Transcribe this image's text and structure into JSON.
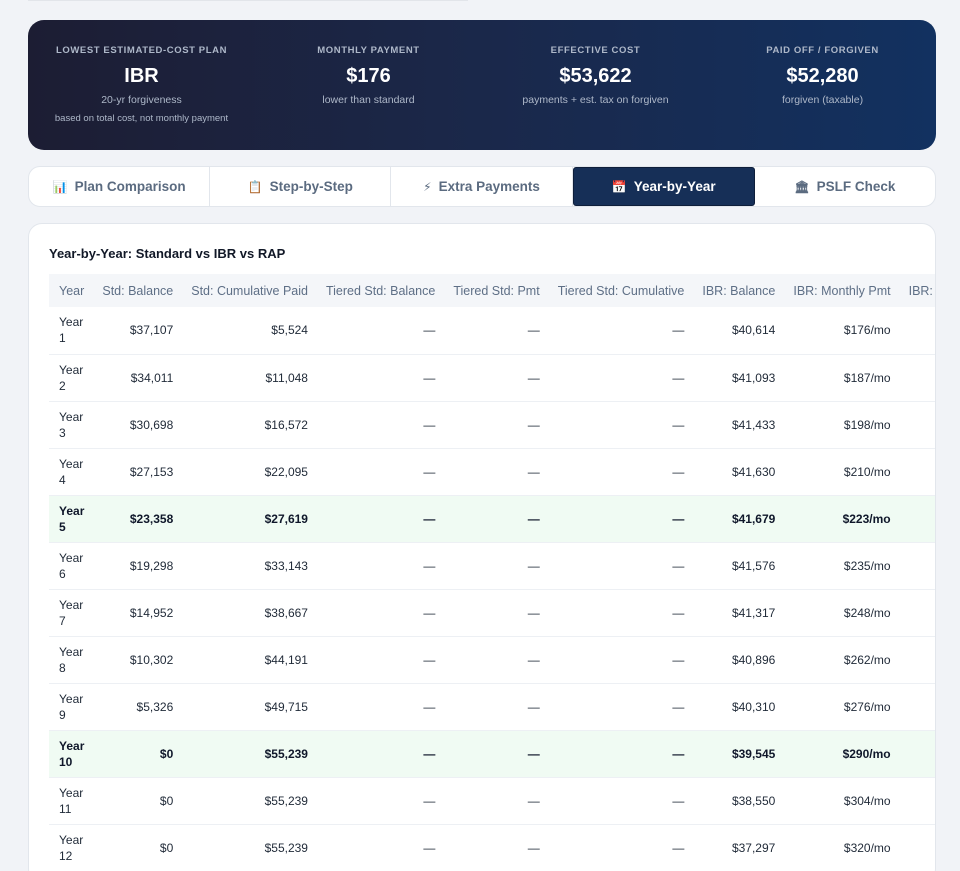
{
  "summary": {
    "stats": [
      {
        "label": "Lowest Estimated-Cost Plan",
        "value": "IBR",
        "sub": "20-yr forgiveness",
        "sub2": "based on total cost, not monthly payment"
      },
      {
        "label": "Monthly Payment",
        "value": "$176",
        "sub": "lower than standard"
      },
      {
        "label": "Effective Cost",
        "value": "$53,622",
        "sub": "payments + est. tax on forgiven"
      },
      {
        "label": "Paid Off / Forgiven",
        "value": "$52,280",
        "sub": "forgiven (taxable)"
      }
    ]
  },
  "tabs": [
    {
      "icon": "📊",
      "icon_name": "bar-chart-icon",
      "label": "Plan Comparison",
      "active": false
    },
    {
      "icon": "📋",
      "icon_name": "clipboard-icon",
      "label": "Step-by-Step",
      "active": false
    },
    {
      "icon": "⚡",
      "icon_name": "lightning-icon",
      "label": "Extra Payments",
      "active": false
    },
    {
      "icon": "📅",
      "icon_name": "calendar-icon",
      "label": "Year-by-Year",
      "active": true
    },
    {
      "icon": "🏛",
      "icon_name": "bank-icon",
      "label": "PSLF Check",
      "active": false
    }
  ],
  "panel": {
    "title": "Year-by-Year: Standard vs IBR vs RAP"
  },
  "table": {
    "columns": [
      "Year",
      "Std: Balance",
      "Std: Cumulative Paid",
      "Tiered Std: Balance",
      "Tiered Std: Pmt",
      "Tiered Std: Cumulative",
      "IBR: Balance",
      "IBR: Monthly Pmt",
      "IBR: Cumulative"
    ],
    "rows": [
      {
        "year": "Year 1",
        "cells": [
          "$37,107",
          "$5,524",
          "—",
          "—",
          "—",
          "$40,614",
          "$176/mo",
          ""
        ],
        "highlight": false
      },
      {
        "year": "Year 2",
        "cells": [
          "$34,011",
          "$11,048",
          "—",
          "—",
          "—",
          "$41,093",
          "$187/mo",
          ""
        ],
        "highlight": false
      },
      {
        "year": "Year 3",
        "cells": [
          "$30,698",
          "$16,572",
          "—",
          "—",
          "—",
          "$41,433",
          "$198/mo",
          ""
        ],
        "highlight": false
      },
      {
        "year": "Year 4",
        "cells": [
          "$27,153",
          "$22,095",
          "—",
          "—",
          "—",
          "$41,630",
          "$210/mo",
          ""
        ],
        "highlight": false
      },
      {
        "year": "Year 5",
        "cells": [
          "$23,358",
          "$27,619",
          "—",
          "—",
          "—",
          "$41,679",
          "$223/mo",
          ""
        ],
        "highlight": true
      },
      {
        "year": "Year 6",
        "cells": [
          "$19,298",
          "$33,143",
          "—",
          "—",
          "—",
          "$41,576",
          "$235/mo",
          ""
        ],
        "highlight": false
      },
      {
        "year": "Year 7",
        "cells": [
          "$14,952",
          "$38,667",
          "—",
          "—",
          "—",
          "$41,317",
          "$248/mo",
          ""
        ],
        "highlight": false
      },
      {
        "year": "Year 8",
        "cells": [
          "$10,302",
          "$44,191",
          "—",
          "—",
          "—",
          "$40,896",
          "$262/mo",
          ""
        ],
        "highlight": false
      },
      {
        "year": "Year 9",
        "cells": [
          "$5,326",
          "$49,715",
          "—",
          "—",
          "—",
          "$40,310",
          "$276/mo",
          ""
        ],
        "highlight": false
      },
      {
        "year": "Year 10",
        "cells": [
          "$0",
          "$55,239",
          "—",
          "—",
          "—",
          "$39,545",
          "$290/mo",
          ""
        ],
        "highlight": true
      },
      {
        "year": "Year 11",
        "cells": [
          "$0",
          "$55,239",
          "—",
          "—",
          "—",
          "$38,550",
          "$304/mo",
          ""
        ],
        "highlight": false
      },
      {
        "year": "Year 12",
        "cells": [
          "$0",
          "$55,239",
          "—",
          "—",
          "—",
          "$37,297",
          "$320/mo",
          ""
        ],
        "highlight": false
      }
    ]
  }
}
